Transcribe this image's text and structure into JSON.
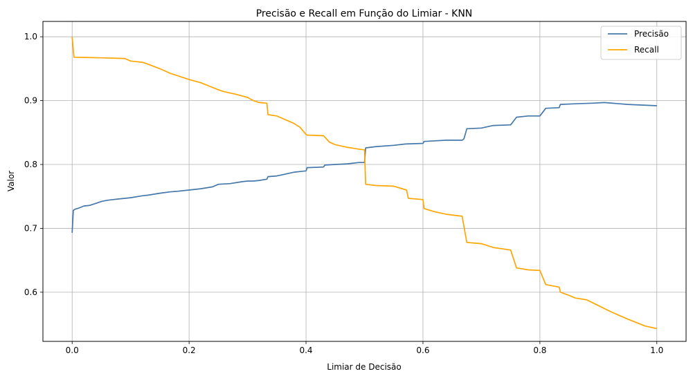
{
  "chart_data": {
    "type": "line",
    "title": "Precisão e Recall em Função do Limiar - KNN",
    "xlabel": "Limiar de Decisão",
    "ylabel": "Valor",
    "xlim": [
      -0.05,
      1.05
    ],
    "ylim": [
      0.523,
      1.024
    ],
    "xticks": [
      0.0,
      0.2,
      0.4,
      0.6,
      0.8,
      1.0
    ],
    "xtick_labels": [
      "0.0",
      "0.2",
      "0.4",
      "0.6",
      "0.8",
      "1.0"
    ],
    "yticks": [
      0.6,
      0.7,
      0.8,
      0.9,
      1.0
    ],
    "ytick_labels": [
      "0.6",
      "0.7",
      "0.8",
      "0.9",
      "1.0"
    ],
    "grid": true,
    "legend_position": "top-right",
    "series": [
      {
        "name": "Precisão",
        "color": "#4477aa",
        "x": [
          0.0,
          0.002,
          0.005,
          0.012,
          0.02,
          0.03,
          0.04,
          0.05,
          0.06,
          0.07,
          0.08,
          0.1,
          0.12,
          0.13,
          0.15,
          0.167,
          0.18,
          0.2,
          0.22,
          0.24,
          0.25,
          0.27,
          0.29,
          0.3,
          0.31,
          0.32,
          0.333,
          0.335,
          0.35,
          0.36,
          0.37,
          0.38,
          0.39,
          0.4,
          0.402,
          0.43,
          0.432,
          0.45,
          0.47,
          0.49,
          0.5,
          0.502,
          0.52,
          0.55,
          0.57,
          0.6,
          0.602,
          0.62,
          0.64,
          0.66,
          0.667,
          0.67,
          0.675,
          0.7,
          0.72,
          0.75,
          0.76,
          0.78,
          0.8,
          0.81,
          0.833,
          0.835,
          0.86,
          0.89,
          0.91,
          0.95,
          1.0
        ],
        "values": [
          0.693,
          0.728,
          0.73,
          0.732,
          0.735,
          0.736,
          0.739,
          0.742,
          0.744,
          0.745,
          0.746,
          0.748,
          0.751,
          0.752,
          0.755,
          0.757,
          0.758,
          0.76,
          0.762,
          0.765,
          0.769,
          0.77,
          0.773,
          0.774,
          0.774,
          0.775,
          0.777,
          0.781,
          0.782,
          0.784,
          0.786,
          0.788,
          0.789,
          0.79,
          0.795,
          0.796,
          0.799,
          0.8,
          0.801,
          0.803,
          0.803,
          0.826,
          0.828,
          0.83,
          0.832,
          0.833,
          0.836,
          0.837,
          0.838,
          0.838,
          0.838,
          0.84,
          0.856,
          0.857,
          0.861,
          0.862,
          0.874,
          0.876,
          0.876,
          0.888,
          0.889,
          0.894,
          0.895,
          0.896,
          0.897,
          0.894,
          0.892
        ]
      },
      {
        "name": "Recall",
        "color": "#ffa500",
        "x": [
          0.0,
          0.003,
          0.05,
          0.09,
          0.1,
          0.12,
          0.13,
          0.15,
          0.167,
          0.2,
          0.22,
          0.25,
          0.26,
          0.28,
          0.3,
          0.31,
          0.32,
          0.333,
          0.335,
          0.35,
          0.36,
          0.37,
          0.38,
          0.39,
          0.4,
          0.402,
          0.43,
          0.44,
          0.45,
          0.47,
          0.49,
          0.5,
          0.502,
          0.52,
          0.55,
          0.572,
          0.575,
          0.6,
          0.602,
          0.62,
          0.64,
          0.667,
          0.675,
          0.7,
          0.72,
          0.75,
          0.76,
          0.78,
          0.8,
          0.81,
          0.833,
          0.835,
          0.85,
          0.86,
          0.88,
          0.9,
          0.92,
          0.95,
          0.98,
          1.0
        ],
        "values": [
          1.0,
          0.968,
          0.967,
          0.966,
          0.962,
          0.96,
          0.957,
          0.95,
          0.943,
          0.933,
          0.928,
          0.917,
          0.914,
          0.91,
          0.905,
          0.9,
          0.897,
          0.896,
          0.878,
          0.876,
          0.872,
          0.868,
          0.864,
          0.858,
          0.847,
          0.846,
          0.845,
          0.835,
          0.831,
          0.827,
          0.824,
          0.823,
          0.769,
          0.767,
          0.766,
          0.76,
          0.747,
          0.745,
          0.731,
          0.726,
          0.722,
          0.719,
          0.678,
          0.676,
          0.67,
          0.666,
          0.638,
          0.635,
          0.634,
          0.612,
          0.608,
          0.6,
          0.595,
          0.591,
          0.588,
          0.579,
          0.57,
          0.558,
          0.547,
          0.543
        ]
      }
    ]
  }
}
